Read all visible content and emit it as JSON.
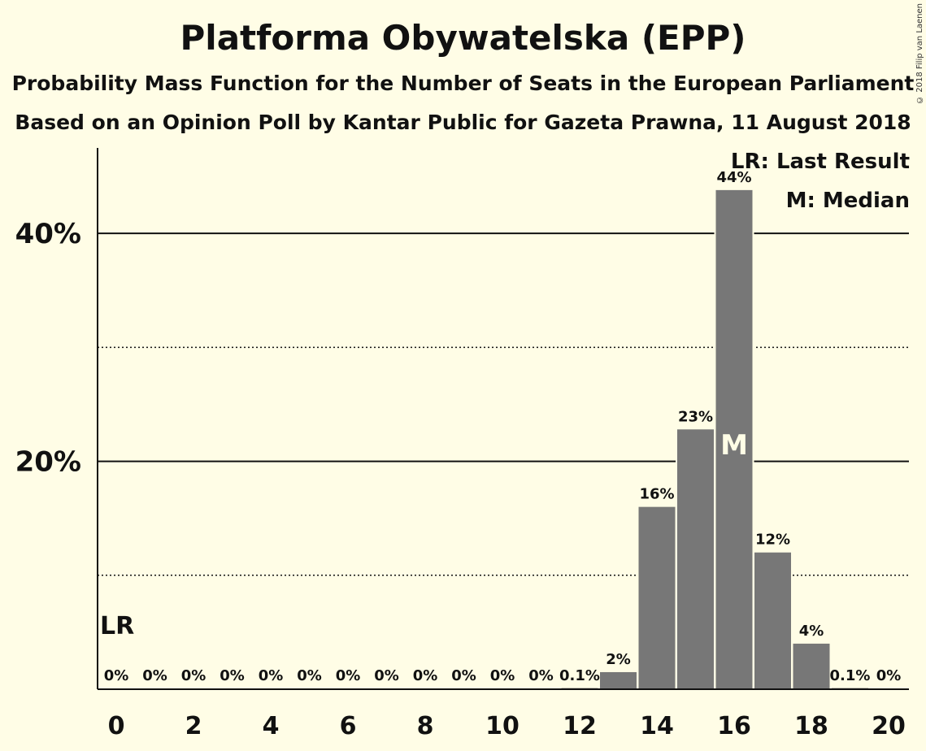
{
  "chart_data": {
    "type": "bar",
    "title": "Platforma Obywatelska (EPP)",
    "subtitle": "Probability Mass Function for the Number of Seats in the European Parliament",
    "subtitle2": "Based on an Opinion Poll by Kantar Public for Gazeta Prawna, 11 August 2018",
    "copyright": "© 2018 Filip van Laenen",
    "x": [
      0,
      1,
      2,
      3,
      4,
      5,
      6,
      7,
      8,
      9,
      10,
      11,
      12,
      13,
      14,
      15,
      16,
      17,
      18,
      19,
      20
    ],
    "values": [
      0,
      0,
      0,
      0,
      0,
      0,
      0,
      0,
      0,
      0,
      0,
      0,
      0.1,
      1.5,
      16,
      22.8,
      43.8,
      12,
      4,
      0.1,
      0
    ],
    "value_labels": [
      "0%",
      "0%",
      "0%",
      "0%",
      "0%",
      "0%",
      "0%",
      "0%",
      "0%",
      "0%",
      "0%",
      "0%",
      "0.1%",
      "2%",
      "16%",
      "23%",
      "44%",
      "12%",
      "4%",
      "0.1%",
      "0%"
    ],
    "x_tick_labels": [
      "0",
      "2",
      "4",
      "6",
      "8",
      "10",
      "12",
      "14",
      "16",
      "18",
      "20"
    ],
    "x_ticks": [
      0,
      2,
      4,
      6,
      8,
      10,
      12,
      14,
      16,
      18,
      20
    ],
    "y_tick_labels": [
      "20%",
      "40%"
    ],
    "y_ticks": [
      20,
      40
    ],
    "y_minor_ticks": [
      10,
      30
    ],
    "ylim": [
      0,
      47.5
    ],
    "xlabel": "",
    "ylabel": "",
    "bar_color": "#777777",
    "last_result": {
      "seat": 0,
      "label": "LR"
    },
    "median": {
      "seat": 16,
      "label": "M"
    },
    "legend": [
      "LR: Last Result",
      "M: Median"
    ],
    "legend_position": "top-right"
  }
}
